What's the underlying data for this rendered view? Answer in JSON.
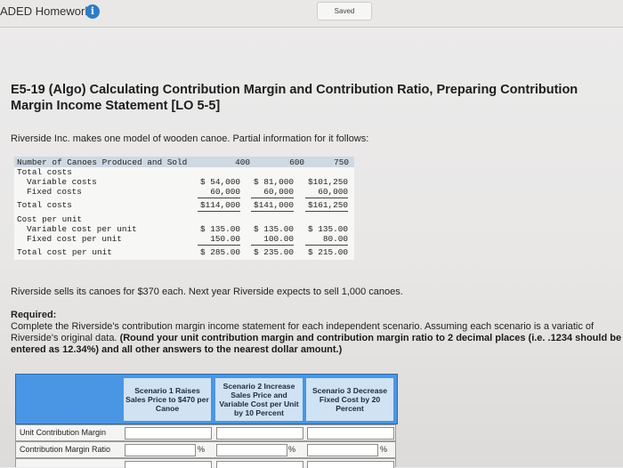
{
  "header": {
    "app_title": "ADED Homework",
    "info_icon": "i",
    "saved_label": "Saved"
  },
  "question": {
    "title": "E5-19 (Algo) Calculating Contribution Margin and Contribution Ratio, Preparing Contribution Margin Income Statement [LO 5-5]",
    "intro": "Riverside Inc. makes one model of wooden canoe. Partial information for it follows:"
  },
  "cost_table": {
    "header_label": "Number of Canoes Produced and Sold",
    "columns": [
      "400",
      "600",
      "750"
    ],
    "total_costs_label": "Total costs",
    "variable_costs_label": "Variable costs",
    "variable_costs": [
      "$ 54,000",
      "$ 81,000",
      "$101,250"
    ],
    "fixed_costs_label": "Fixed costs",
    "fixed_costs": [
      "60,000",
      "60,000",
      "60,000"
    ],
    "total_costs_row_label": "Total costs",
    "total_costs": [
      "$114,000",
      "$141,000",
      "$161,250"
    ],
    "cost_per_unit_label": "Cost per unit",
    "var_per_unit_label": "Variable cost per unit",
    "var_per_unit": [
      "$ 135.00",
      "$ 135.00",
      "$ 135.00"
    ],
    "fixed_per_unit_label": "Fixed cost per unit",
    "fixed_per_unit": [
      "150.00",
      "100.00",
      "80.00"
    ],
    "total_per_unit_label": "Total cost per unit",
    "total_per_unit": [
      "$ 285.00",
      "$ 235.00",
      "$ 215.00"
    ]
  },
  "sells_text": "Riverside sells its canoes for $370 each. Next year Riverside expects to sell 1,000 canoes.",
  "required": {
    "heading": "Required:",
    "text": "Complete the Riverside's contribution margin income statement for each independent scenario. Assuming each scenario is a variatic of Riverside's original data.",
    "bold_text": "(Round your unit contribution margin and contribution margin ratio to 2 decimal places (i.e. .1234 should be entered as 12.34%) and all other answers to the nearest dollar amount.)"
  },
  "answer_table": {
    "scenarios": [
      "Scenario 1 Raises Sales Price to $470 per Canoe",
      "Scenario 2 Increase Sales Price and Variable Cost per Unit by 10 Percent",
      "Scenario 3 Decrease Fixed Cost by 20 Percent"
    ],
    "row_unit_cm": "Unit Contribution Margin",
    "row_cm_ratio": "Contribution Margin Ratio",
    "pct_symbol": "%"
  }
}
